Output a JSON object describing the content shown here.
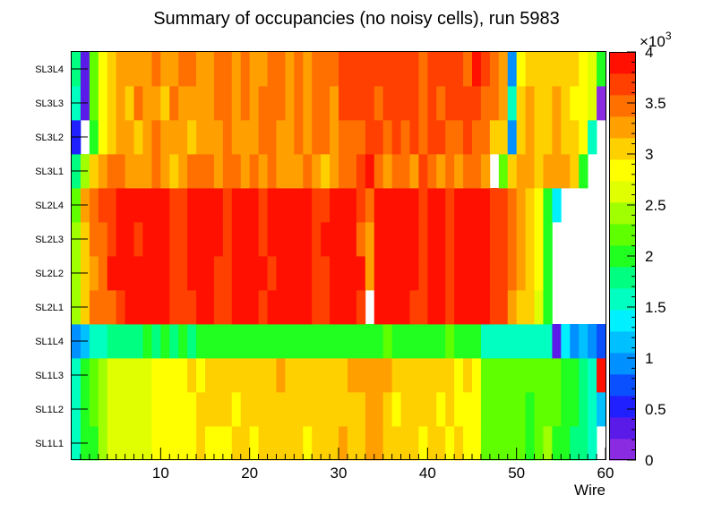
{
  "chart_data": {
    "type": "heatmap",
    "title": "Summary of occupancies (no noisy cells), run 5983",
    "xlabel": "Wire",
    "ylabel": "",
    "xlim": [
      0,
      60
    ],
    "x_ticks": [
      10,
      20,
      30,
      40,
      50,
      60
    ],
    "y_categories": [
      "SL1L1",
      "SL1L2",
      "SL1L3",
      "SL1L4",
      "SL2L1",
      "SL2L2",
      "SL2L3",
      "SL2L4",
      "SL3L1",
      "SL3L2",
      "SL3L3",
      "SL3L4"
    ],
    "z_range": [
      0,
      4000
    ],
    "z_ticks": [
      "0",
      "0.5",
      "1",
      "1.5",
      "2",
      "2.5",
      "3",
      "3.5",
      "4"
    ],
    "z_exponent_label": "×10",
    "z_exponent_power": "3",
    "palette": [
      "#8a2be2",
      "#5a1ae8",
      "#2020ff",
      "#0a50ff",
      "#0090ff",
      "#00c0ff",
      "#00f0ff",
      "#00ffc0",
      "#00ff80",
      "#20ff20",
      "#60ff00",
      "#a0ff00",
      "#e0ff00",
      "#ffff00",
      "#ffd000",
      "#ffa000",
      "#ff7000",
      "#ff4000",
      "#ff1000"
    ],
    "rows": [
      {
        "label": "SL1L1",
        "values": [
          1.5,
          1.9,
          2.1,
          2.5,
          2.7,
          2.7,
          2.6,
          2.6,
          2.6,
          2.8,
          2.9,
          2.9,
          2.8,
          2.9,
          3.0,
          2.9,
          2.8,
          2.9,
          3.0,
          3.0,
          2.9,
          3.1,
          3.0,
          3.0,
          3.0,
          3.0,
          2.9,
          3.1,
          3.0,
          3.1,
          3.2,
          3.1,
          3.0,
          3.2,
          3.3,
          3.0,
          3.0,
          3.1,
          3.0,
          2.9,
          3.0,
          3.0,
          2.9,
          3.0,
          2.8,
          2.8,
          2.3,
          2.2,
          2.2,
          2.2,
          2.2,
          2.1,
          2.2,
          2.5,
          2.1,
          2.0,
          1.8,
          1.7,
          1.6,
          0.0
        ]
      },
      {
        "label": "SL1L2",
        "values": [
          1.5,
          1.9,
          2.2,
          2.5,
          2.7,
          2.6,
          2.6,
          2.7,
          2.7,
          2.8,
          2.9,
          2.9,
          2.9,
          2.9,
          3.0,
          3.0,
          3.0,
          3.1,
          2.9,
          3.1,
          3.1,
          3.0,
          3.0,
          3.1,
          3.1,
          3.0,
          3.0,
          3.1,
          3.1,
          3.0,
          3.0,
          3.0,
          3.1,
          3.2,
          3.2,
          3.0,
          2.9,
          3.1,
          3.1,
          3.0,
          3.0,
          2.9,
          3.0,
          2.9,
          2.9,
          2.8,
          2.2,
          2.2,
          2.2,
          2.3,
          2.2,
          2.1,
          2.2,
          2.3,
          2.2,
          2.1,
          1.9,
          1.8,
          1.5,
          1.1
        ]
      },
      {
        "label": "SL1L3",
        "values": [
          1.5,
          2.0,
          2.2,
          2.5,
          2.6,
          2.7,
          2.7,
          2.7,
          2.6,
          2.8,
          2.8,
          2.9,
          2.9,
          3.0,
          2.9,
          3.0,
          3.0,
          3.0,
          3.1,
          3.0,
          3.1,
          3.1,
          3.0,
          3.2,
          3.1,
          3.0,
          3.0,
          3.1,
          3.0,
          3.1,
          3.1,
          3.2,
          3.3,
          3.2,
          3.3,
          3.2,
          3.1,
          3.1,
          3.0,
          3.0,
          3.0,
          3.0,
          3.0,
          2.9,
          3.0,
          2.8,
          2.3,
          2.2,
          2.3,
          2.2,
          2.2,
          2.2,
          2.2,
          2.3,
          2.2,
          2.1,
          1.9,
          1.8,
          1.6,
          3.9
        ]
      },
      {
        "label": "SL1L4",
        "values": [
          1.0,
          1.2,
          1.5,
          1.6,
          1.7,
          1.8,
          1.8,
          1.8,
          1.9,
          1.8,
          1.9,
          1.8,
          1.9,
          1.8,
          1.9,
          1.9,
          2.0,
          1.9,
          2.0,
          1.9,
          1.9,
          2.0,
          2.0,
          1.9,
          1.9,
          2.0,
          1.9,
          2.0,
          1.9,
          2.0,
          1.9,
          2.1,
          2.0,
          2.0,
          2.1,
          2.2,
          2.1,
          2.0,
          2.0,
          2.1,
          2.1,
          2.1,
          2.2,
          2.1,
          2.1,
          2.1,
          1.6,
          1.5,
          1.5,
          1.5,
          1.5,
          1.5,
          1.5,
          1.5,
          0.4,
          1.3,
          1.0,
          1.1,
          0.9,
          0.7
        ]
      },
      {
        "label": "SL2L1",
        "values": [
          2.4,
          3.1,
          3.4,
          3.4,
          3.5,
          3.6,
          3.8,
          3.8,
          3.8,
          3.8,
          3.8,
          3.7,
          3.7,
          3.7,
          3.8,
          3.8,
          3.6,
          3.7,
          3.8,
          3.8,
          3.8,
          3.6,
          3.8,
          3.8,
          3.8,
          3.8,
          3.8,
          3.6,
          3.7,
          3.8,
          3.8,
          3.8,
          3.7,
          0.0,
          3.9,
          3.9,
          3.8,
          3.8,
          3.7,
          3.7,
          3.8,
          3.8,
          3.6,
          3.8,
          3.8,
          4.1,
          3.8,
          3.6,
          3.6,
          3.3,
          3.1,
          3.0,
          2.7,
          2.0,
          0.0,
          0.0,
          0.0,
          0.0,
          0.0,
          0.0
        ]
      },
      {
        "label": "SL2L2",
        "values": [
          2.4,
          3.1,
          3.3,
          3.5,
          3.8,
          3.8,
          3.8,
          3.8,
          3.8,
          3.8,
          3.8,
          3.7,
          3.6,
          3.8,
          3.8,
          3.8,
          3.7,
          3.6,
          3.8,
          3.9,
          3.8,
          3.8,
          3.7,
          3.8,
          3.8,
          3.8,
          3.8,
          3.6,
          3.7,
          3.8,
          3.8,
          3.8,
          3.8,
          3.3,
          3.9,
          3.8,
          3.8,
          3.8,
          3.8,
          3.7,
          3.8,
          3.8,
          3.6,
          3.8,
          3.8,
          3.8,
          3.8,
          3.6,
          3.7,
          3.4,
          3.2,
          3.0,
          2.8,
          2.0,
          0.0,
          0.0,
          0.0,
          0.0,
          0.0,
          0.0
        ]
      },
      {
        "label": "SL2L3",
        "values": [
          2.4,
          3.1,
          3.4,
          3.5,
          3.6,
          3.8,
          3.8,
          3.7,
          3.8,
          3.8,
          3.8,
          3.7,
          3.6,
          3.8,
          3.8,
          3.8,
          3.8,
          3.7,
          3.8,
          3.8,
          3.8,
          3.7,
          3.8,
          3.8,
          3.8,
          3.8,
          3.8,
          3.6,
          3.8,
          3.8,
          3.8,
          3.8,
          3.5,
          3.2,
          3.8,
          3.8,
          3.8,
          3.8,
          3.8,
          3.7,
          3.8,
          3.8,
          3.7,
          3.8,
          3.8,
          3.8,
          3.8,
          3.6,
          3.7,
          3.4,
          3.2,
          3.0,
          2.8,
          2.0,
          0.0,
          0.0,
          0.0,
          0.0,
          0.0,
          0.0
        ]
      },
      {
        "label": "SL2L4",
        "values": [
          2.3,
          3.2,
          3.5,
          3.6,
          3.7,
          3.8,
          3.8,
          3.8,
          3.8,
          3.8,
          3.8,
          3.7,
          3.6,
          3.8,
          3.8,
          3.8,
          3.8,
          3.7,
          3.8,
          3.8,
          3.8,
          3.7,
          3.8,
          3.8,
          3.8,
          3.8,
          3.8,
          3.6,
          3.7,
          3.8,
          3.8,
          3.8,
          3.6,
          3.5,
          3.8,
          3.8,
          3.8,
          3.8,
          3.8,
          3.7,
          3.8,
          3.8,
          3.7,
          3.8,
          3.8,
          3.8,
          3.8,
          3.6,
          3.7,
          3.5,
          3.3,
          3.1,
          2.9,
          2.1,
          1.4,
          0.0,
          0.0,
          0.0,
          0.0,
          0.0
        ]
      },
      {
        "label": "SL3L1",
        "values": [
          1.8,
          2.5,
          3.0,
          3.3,
          3.4,
          3.4,
          3.2,
          3.2,
          3.3,
          3.4,
          3.2,
          3.1,
          3.3,
          3.4,
          3.4,
          3.4,
          3.3,
          3.4,
          3.4,
          3.3,
          3.4,
          3.3,
          3.4,
          3.3,
          3.3,
          3.3,
          3.4,
          3.3,
          3.1,
          3.3,
          3.4,
          3.4,
          3.6,
          3.8,
          3.4,
          3.3,
          3.5,
          3.4,
          3.3,
          3.6,
          3.4,
          3.3,
          3.4,
          3.3,
          3.5,
          3.4,
          3.2,
          0.0,
          2.2,
          3.0,
          3.2,
          3.2,
          3.1,
          3.2,
          3.2,
          3.3,
          3.1,
          2.1,
          0.0,
          0.0
        ]
      },
      {
        "label": "SL3L2",
        "values": [
          0.5,
          0.0,
          1.9,
          2.8,
          3.0,
          3.2,
          3.3,
          3.1,
          3.3,
          3.4,
          3.3,
          3.3,
          3.2,
          3.1,
          3.3,
          3.3,
          3.2,
          3.4,
          3.3,
          3.2,
          3.2,
          3.4,
          3.5,
          3.3,
          3.2,
          3.4,
          3.3,
          3.4,
          3.5,
          3.2,
          3.5,
          3.4,
          3.5,
          3.6,
          3.6,
          3.4,
          3.6,
          3.5,
          3.7,
          3.4,
          3.6,
          3.6,
          3.5,
          3.5,
          3.6,
          3.5,
          3.4,
          3.1,
          3.1,
          1.0,
          3.0,
          3.2,
          3.1,
          3.1,
          3.2,
          3.1,
          3.0,
          2.8,
          1.6,
          0.0
        ]
      },
      {
        "label": "SL3L3",
        "values": [
          1.6,
          0.4,
          2.2,
          2.9,
          3.1,
          3.2,
          3.1,
          3.4,
          3.3,
          3.2,
          3.1,
          3.4,
          3.3,
          3.3,
          3.2,
          3.3,
          3.4,
          3.5,
          3.3,
          3.4,
          3.3,
          3.4,
          3.4,
          3.5,
          3.3,
          3.4,
          3.3,
          3.4,
          3.5,
          3.3,
          3.6,
          3.6,
          3.7,
          3.6,
          3.5,
          3.6,
          3.6,
          3.6,
          3.7,
          3.5,
          3.6,
          3.5,
          3.6,
          3.6,
          3.7,
          3.6,
          3.5,
          3.4,
          3.3,
          1.5,
          3.0,
          3.2,
          3.1,
          3.1,
          3.2,
          3.0,
          2.9,
          2.8,
          2.6,
          0.1
        ]
      },
      {
        "label": "SL3L4",
        "values": [
          1.7,
          0.4,
          2.3,
          2.9,
          3.1,
          3.2,
          3.2,
          3.2,
          3.3,
          3.4,
          3.2,
          3.3,
          3.4,
          3.4,
          3.2,
          3.3,
          3.5,
          3.4,
          3.3,
          3.4,
          3.3,
          3.3,
          3.4,
          3.5,
          3.3,
          3.4,
          3.3,
          3.5,
          3.4,
          3.5,
          3.7,
          3.6,
          3.6,
          3.7,
          3.6,
          3.6,
          3.6,
          3.7,
          3.6,
          3.5,
          3.6,
          3.7,
          3.6,
          3.7,
          3.5,
          3.9,
          3.6,
          3.5,
          3.3,
          1.0,
          2.8,
          3.0,
          3.1,
          3.1,
          3.1,
          3.0,
          3.0,
          2.9,
          2.7,
          1.9
        ]
      }
    ]
  }
}
